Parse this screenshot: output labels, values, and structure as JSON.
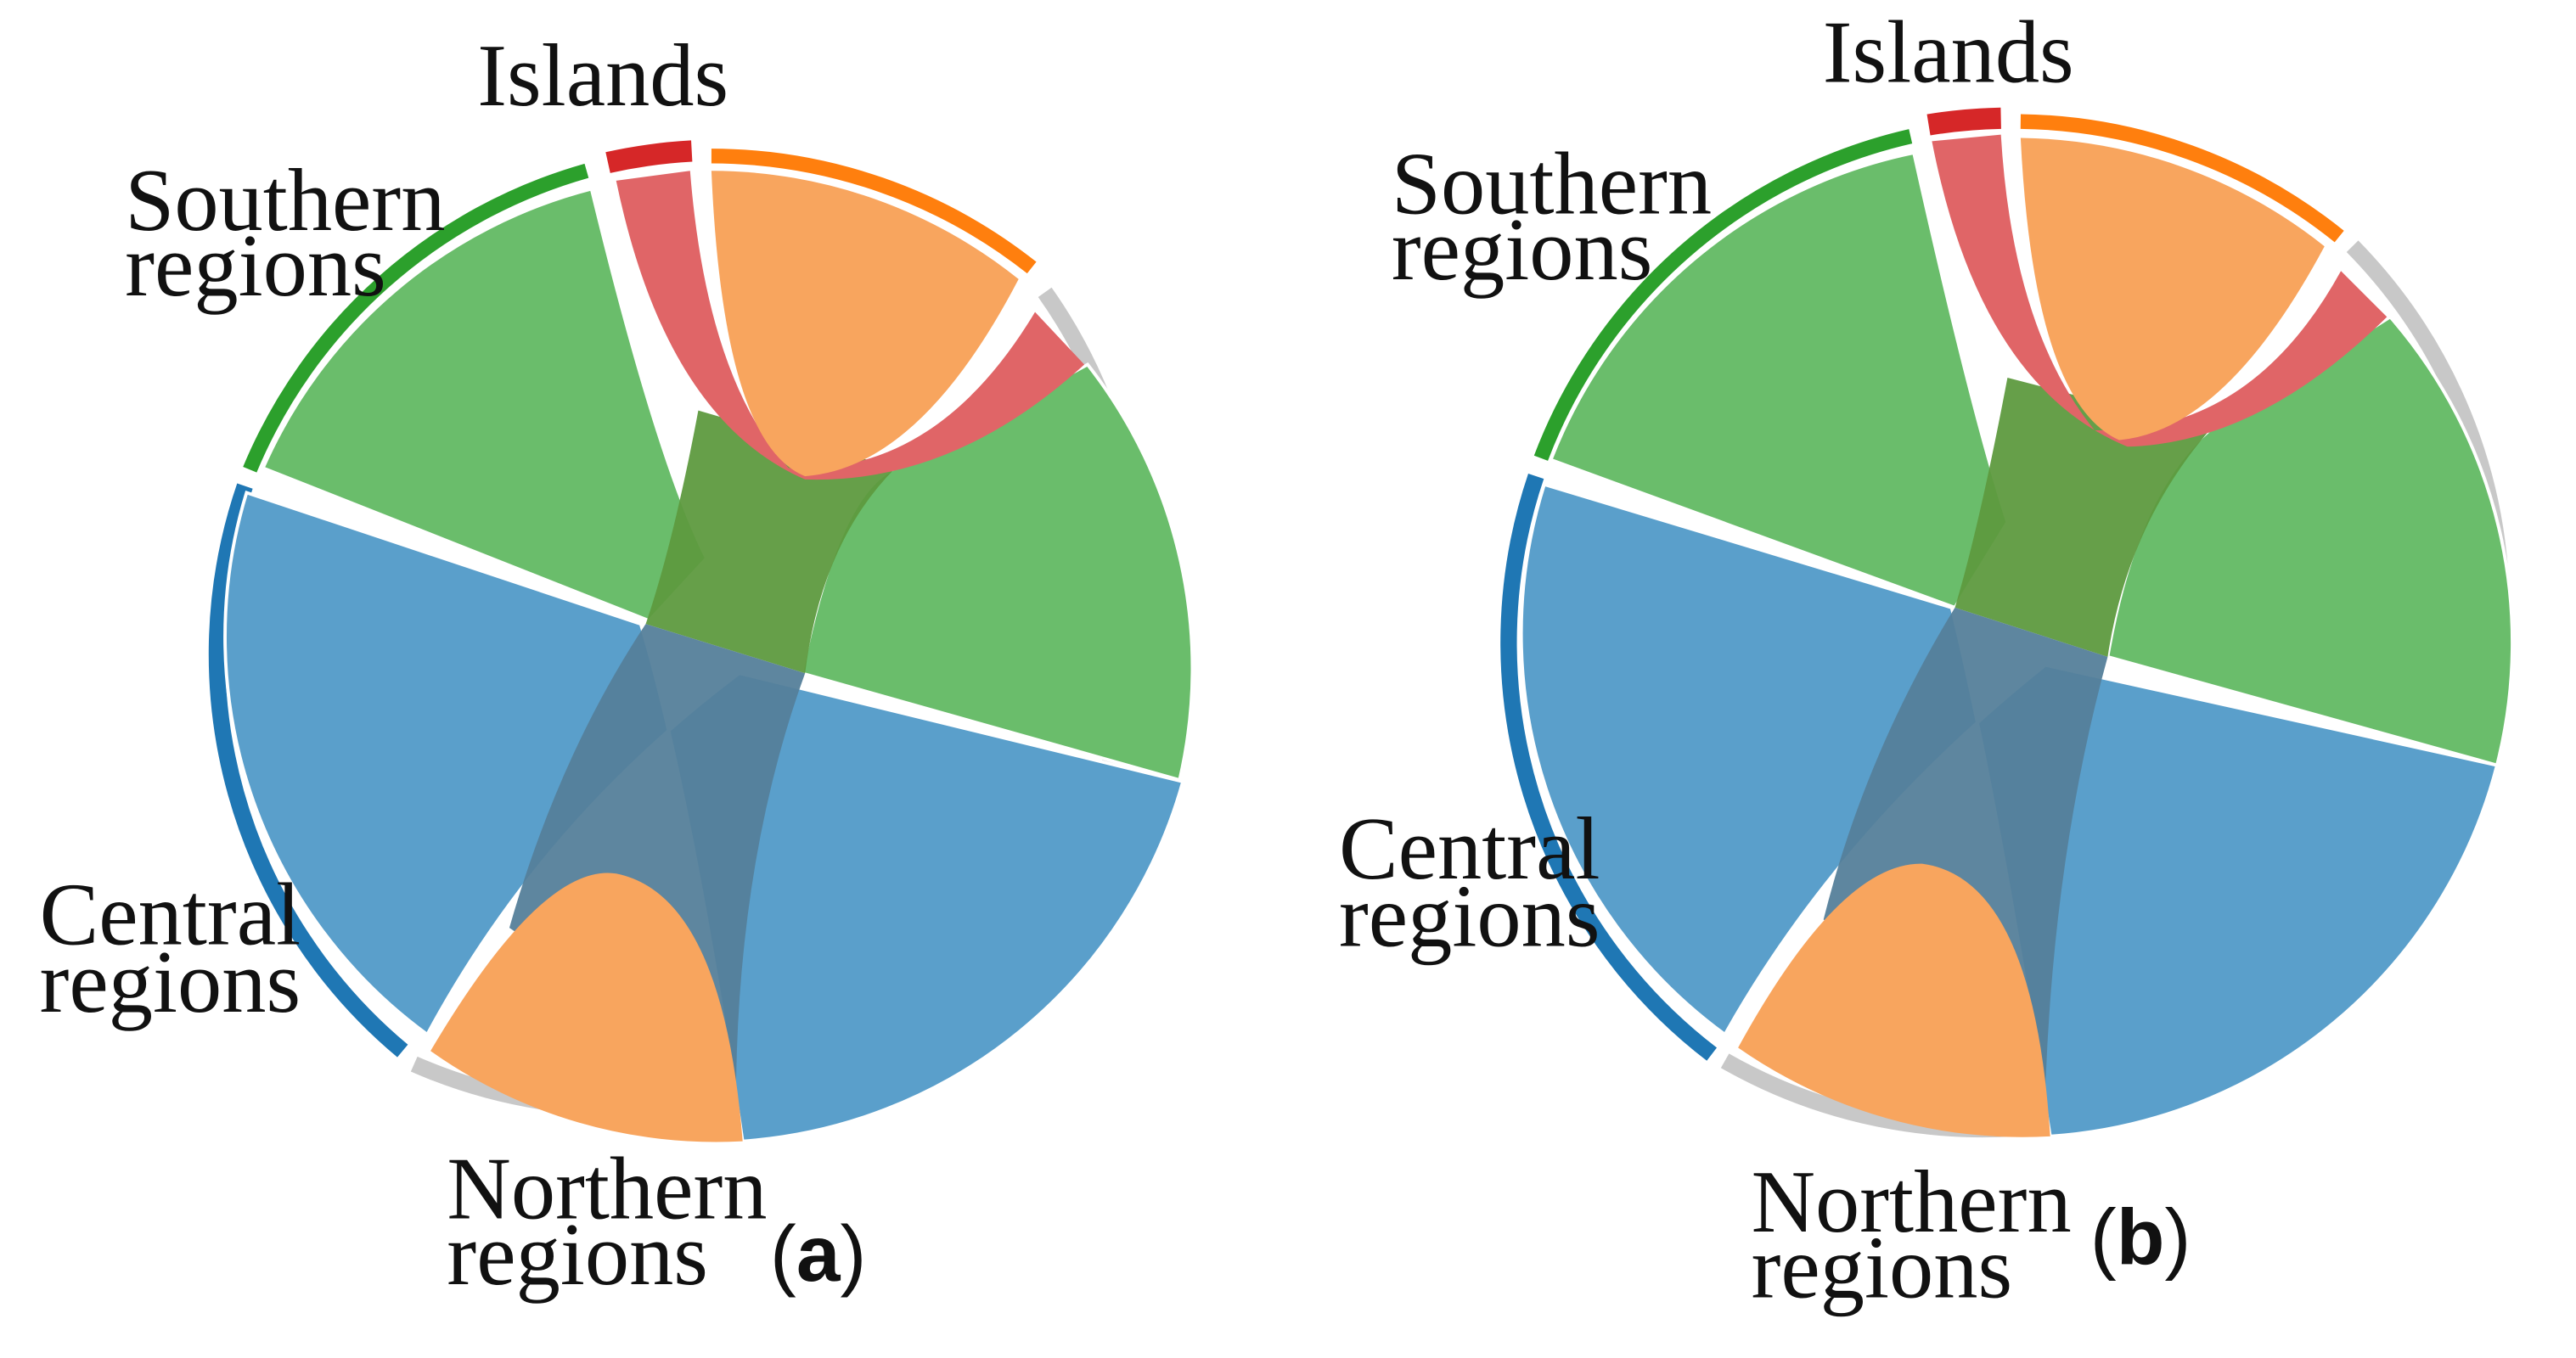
{
  "regions": {
    "islands": {
      "line1": "Islands",
      "line2": ""
    },
    "southern": {
      "line1": "Southern",
      "line2": "regions"
    },
    "central": {
      "line1": "Central",
      "line2": "regions"
    },
    "northern": {
      "line1": "Northern",
      "line2": "regions"
    }
  },
  "colors": {
    "islands": "#d62728",
    "southern": "#2ca02c",
    "central": "#1f77b4",
    "northern": "#ff7f0e",
    "gray_outer": "#c8c8c8"
  },
  "panels": [
    {
      "open": "(",
      "letter": "a",
      "close": ")"
    },
    {
      "open": "(",
      "letter": "b",
      "close": ")"
    }
  ]
}
